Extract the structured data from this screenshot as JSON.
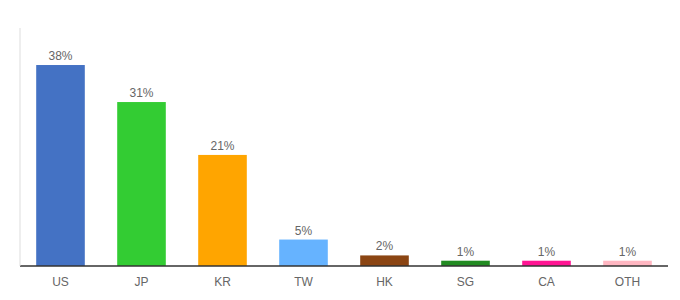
{
  "chart_data": {
    "type": "bar",
    "categories": [
      "US",
      "JP",
      "KR",
      "TW",
      "HK",
      "SG",
      "CA",
      "OTH"
    ],
    "values": [
      38,
      31,
      21,
      5,
      2,
      1,
      1,
      1
    ],
    "value_labels": [
      "38%",
      "31%",
      "21%",
      "5%",
      "2%",
      "1%",
      "1%",
      "1%"
    ],
    "colors": [
      "#4472C4",
      "#33CC33",
      "#FFA500",
      "#66B3FF",
      "#8B4513",
      "#228B22",
      "#FF1493",
      "#FFB6C1"
    ],
    "ylim": [
      0,
      45
    ],
    "data_labels": true,
    "tick_labels": "x",
    "grid": false
  }
}
